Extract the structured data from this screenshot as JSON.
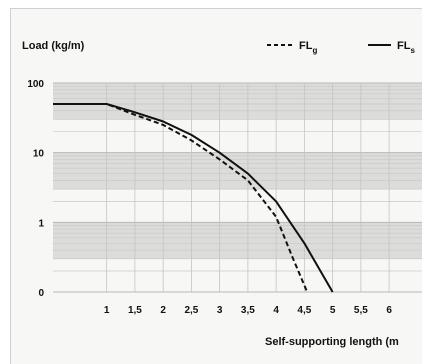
{
  "chart_data": {
    "type": "line",
    "y_label": "Load (kg/m)",
    "x_label": "Self-supporting length (m",
    "y_scale": "log",
    "y_ticks": [
      {
        "value": 100,
        "label": "100"
      },
      {
        "value": 10,
        "label": "10"
      },
      {
        "value": 1,
        "label": "1"
      },
      {
        "value": 0.1,
        "label": "0"
      }
    ],
    "x_ticks": [
      {
        "value": 1,
        "label": "1"
      },
      {
        "value": 1.5,
        "label": "1,5"
      },
      {
        "value": 2,
        "label": "2"
      },
      {
        "value": 2.5,
        "label": "2,5"
      },
      {
        "value": 3,
        "label": "3"
      },
      {
        "value": 3.5,
        "label": "3,5"
      },
      {
        "value": 4,
        "label": "4"
      },
      {
        "value": 4.5,
        "label": "4,5"
      },
      {
        "value": 5,
        "label": "5"
      },
      {
        "value": 5.5,
        "label": "5,5"
      },
      {
        "value": 6,
        "label": "6"
      }
    ],
    "xlim": [
      0.05,
      6.6
    ],
    "ylim": [
      0.1,
      100
    ],
    "grid": true,
    "legend_position": "top-right",
    "series": [
      {
        "name_main": "FL",
        "name_sub": "g",
        "style": "dashed",
        "color": "#111111",
        "points": [
          [
            0.05,
            50
          ],
          [
            1,
            50
          ],
          [
            1.5,
            35
          ],
          [
            2,
            25
          ],
          [
            2.5,
            15
          ],
          [
            3,
            8
          ],
          [
            3.5,
            4
          ],
          [
            4,
            1.2
          ],
          [
            4.3,
            0.3
          ],
          [
            4.55,
            0.1
          ]
        ]
      },
      {
        "name_main": "FL",
        "name_sub": "s",
        "style": "solid",
        "color": "#111111",
        "points": [
          [
            0.05,
            50
          ],
          [
            1,
            50
          ],
          [
            1.5,
            38
          ],
          [
            2,
            28
          ],
          [
            2.5,
            18
          ],
          [
            3,
            10
          ],
          [
            3.5,
            5
          ],
          [
            4,
            2
          ],
          [
            4.5,
            0.5
          ],
          [
            5,
            0.1
          ]
        ]
      }
    ]
  }
}
